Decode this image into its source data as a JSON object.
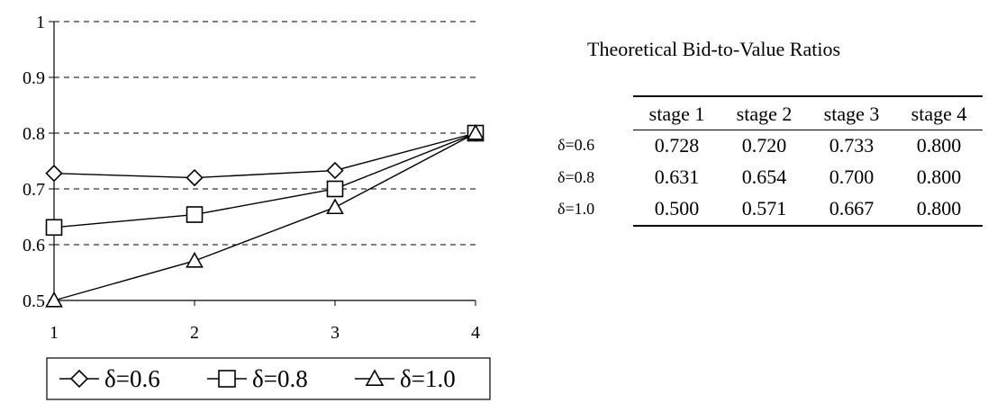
{
  "chart_data": {
    "type": "line",
    "x": [
      1,
      2,
      3,
      4
    ],
    "xlim": [
      1,
      4
    ],
    "ylim": [
      0.5,
      1.0
    ],
    "yticks": [
      "0.5",
      "0.6",
      "0.7",
      "0.8",
      "0.9",
      "1"
    ],
    "xticks": [
      "1",
      "2",
      "3",
      "4"
    ],
    "grid": "horizontal dashed",
    "legend_position": "bottom",
    "series": [
      {
        "name": "δ=0.6",
        "marker": "diamond",
        "values": [
          0.728,
          0.72,
          0.733,
          0.8
        ]
      },
      {
        "name": "δ=0.8",
        "marker": "square",
        "values": [
          0.631,
          0.654,
          0.7,
          0.8
        ]
      },
      {
        "name": "δ=1.0",
        "marker": "triangle",
        "values": [
          0.5,
          0.571,
          0.667,
          0.8
        ]
      }
    ]
  },
  "table": {
    "title": "Theoretical Bid-to-Value Ratios",
    "headers": [
      "stage 1",
      "stage 2",
      "stage 3",
      "stage 4"
    ],
    "rows": [
      {
        "label": "δ=0.6",
        "values": [
          "0.728",
          "0.720",
          "0.733",
          "0.800"
        ]
      },
      {
        "label": "δ=0.8",
        "values": [
          "0.631",
          "0.654",
          "0.700",
          "0.800"
        ]
      },
      {
        "label": "δ=1.0",
        "values": [
          "0.500",
          "0.571",
          "0.667",
          "0.800"
        ]
      }
    ]
  }
}
